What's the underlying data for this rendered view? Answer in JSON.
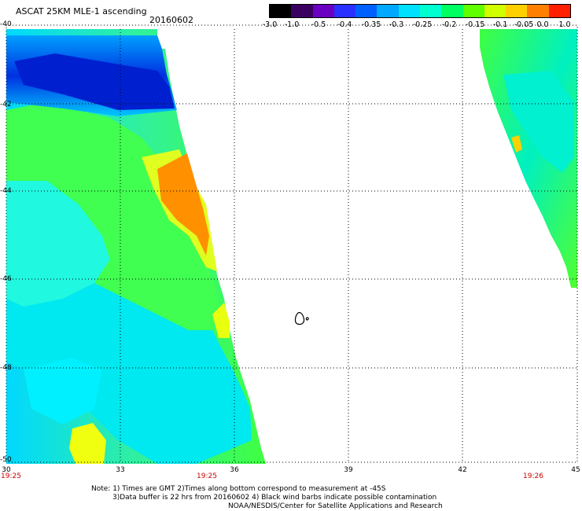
{
  "header": {
    "title": "ASCAT 25KM MLE-1 ascending",
    "date": "20160602"
  },
  "colorbar": {
    "labels": [
      "-3.0",
      "-1.0",
      "-0.5",
      "-0.4",
      "-0.35",
      "-0.3",
      "-0.25",
      "-0.2",
      "-0.15",
      "-0.1",
      "-0.05",
      "0.0",
      "1.0"
    ],
    "colors": [
      "#000000",
      "#3a0060",
      "#6a00c0",
      "#2a30ff",
      "#0060ff",
      "#00a8ff",
      "#00e0ff",
      "#00ffd0",
      "#00ff60",
      "#60ff00",
      "#d0ff00",
      "#ffd000",
      "#ff8000",
      "#ff2000"
    ]
  },
  "axes": {
    "lon_ticks": [
      "30",
      "33",
      "36",
      "39",
      "42",
      "45"
    ],
    "lat_ticks": [
      "-40",
      "-42",
      "-44",
      "-46",
      "-48",
      "-50"
    ],
    "lon_range": [
      30,
      45
    ],
    "lat_range": [
      -40,
      -50
    ]
  },
  "times": [
    "19:25",
    "19:25",
    "19:26"
  ],
  "notes": [
    "Note: 1) Times are GMT 2)Times along bottom correspond to measurement at -45S",
    "3)Data buffer is 22 hrs from 20160602 4) Black wind barbs indicate possible contamination",
    "NOAA/NESDIS/Center for Satellite Applications and Research"
  ]
}
